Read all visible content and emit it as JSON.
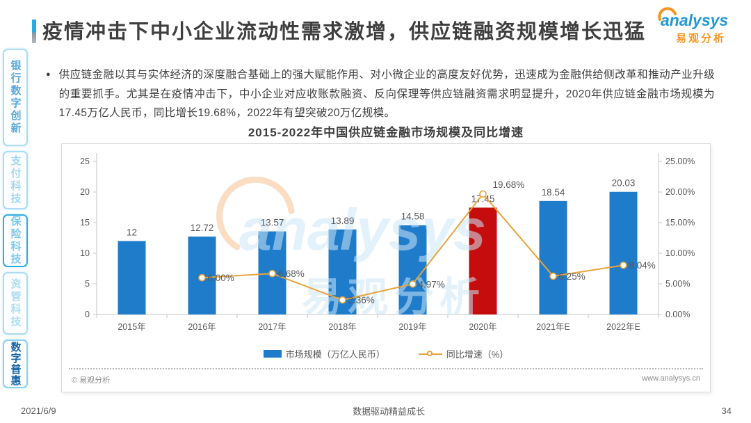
{
  "page": {
    "title": "疫情冲击下中小企业流动性需求激增，供应链融资规模增长迅猛",
    "footer": {
      "date": "2021/6/9",
      "slogan": "数据驱动精益成长",
      "page_number": "34"
    }
  },
  "logo": {
    "brand": "analysys",
    "brand_cn": "易观分析"
  },
  "sidebar": {
    "items": [
      {
        "label": "银行数字创新",
        "selected": false
      },
      {
        "label": "支付科技",
        "selected": false
      },
      {
        "label": "保险科技",
        "selected": false
      },
      {
        "label": "资管科技",
        "selected": false
      },
      {
        "label": "数字普惠",
        "selected": true
      }
    ]
  },
  "bullet": {
    "marker": "●",
    "text": "供应链金融以其与实体经济的深度融合基础上的强大赋能作用、对小微企业的高度友好优势，迅速成为金融供给侧改革和推动产业升级的重要抓手。尤其是在疫情冲击下，中小企业对应收账款融资、反向保理等供应链融资需求明显提升，2020年供应链金融市场规模为17.45万亿人民币，同比增长19.68%，2022年有望突破20万亿规模。"
  },
  "chart_card": {
    "source": "© 易观分析",
    "site": "www.analysys.cn"
  },
  "watermark": {
    "line1": "analysys",
    "line2": "易观分析"
  },
  "chart_data": {
    "type": "bar",
    "title": "2015-2022年中国供应链金融市场规模及同比增速",
    "categories": [
      "2015年",
      "2016年",
      "2017年",
      "2018年",
      "2019年",
      "2020年",
      "2021年E",
      "2022年E"
    ],
    "series": [
      {
        "name": "市场规模（万亿人民币）",
        "type": "bar",
        "values": [
          12,
          12.72,
          13.57,
          13.89,
          14.58,
          17.45,
          18.54,
          20.03
        ],
        "labels": [
          "12",
          "12.72",
          "13.57",
          "13.89",
          "14.58",
          "17.45",
          "18.54",
          "20.03"
        ],
        "color": "#1f7ccb",
        "highlight_index": 5,
        "highlight_color": "#c50d0d"
      },
      {
        "name": "同比增速（%）",
        "type": "line",
        "values": [
          null,
          6.0,
          6.68,
          2.36,
          4.97,
          19.68,
          6.25,
          8.04
        ],
        "labels": [
          "",
          "6.00%",
          "6.68%",
          "2.36%",
          "4.97%",
          "19.68%",
          "6.25%",
          "8.04%"
        ],
        "color": "#e8a33c"
      }
    ],
    "left_axis": {
      "ticks": [
        "0",
        "5",
        "10",
        "15",
        "20",
        "25"
      ],
      "min": 0,
      "max": 25
    },
    "right_axis": {
      "ticks": [
        "0.00%",
        "5.00%",
        "10.00%",
        "15.00%",
        "20.00%",
        "25.00%"
      ],
      "min": 0,
      "max": 25
    },
    "ylim": [
      0,
      25
    ],
    "grid": false,
    "legend_position": "bottom"
  }
}
